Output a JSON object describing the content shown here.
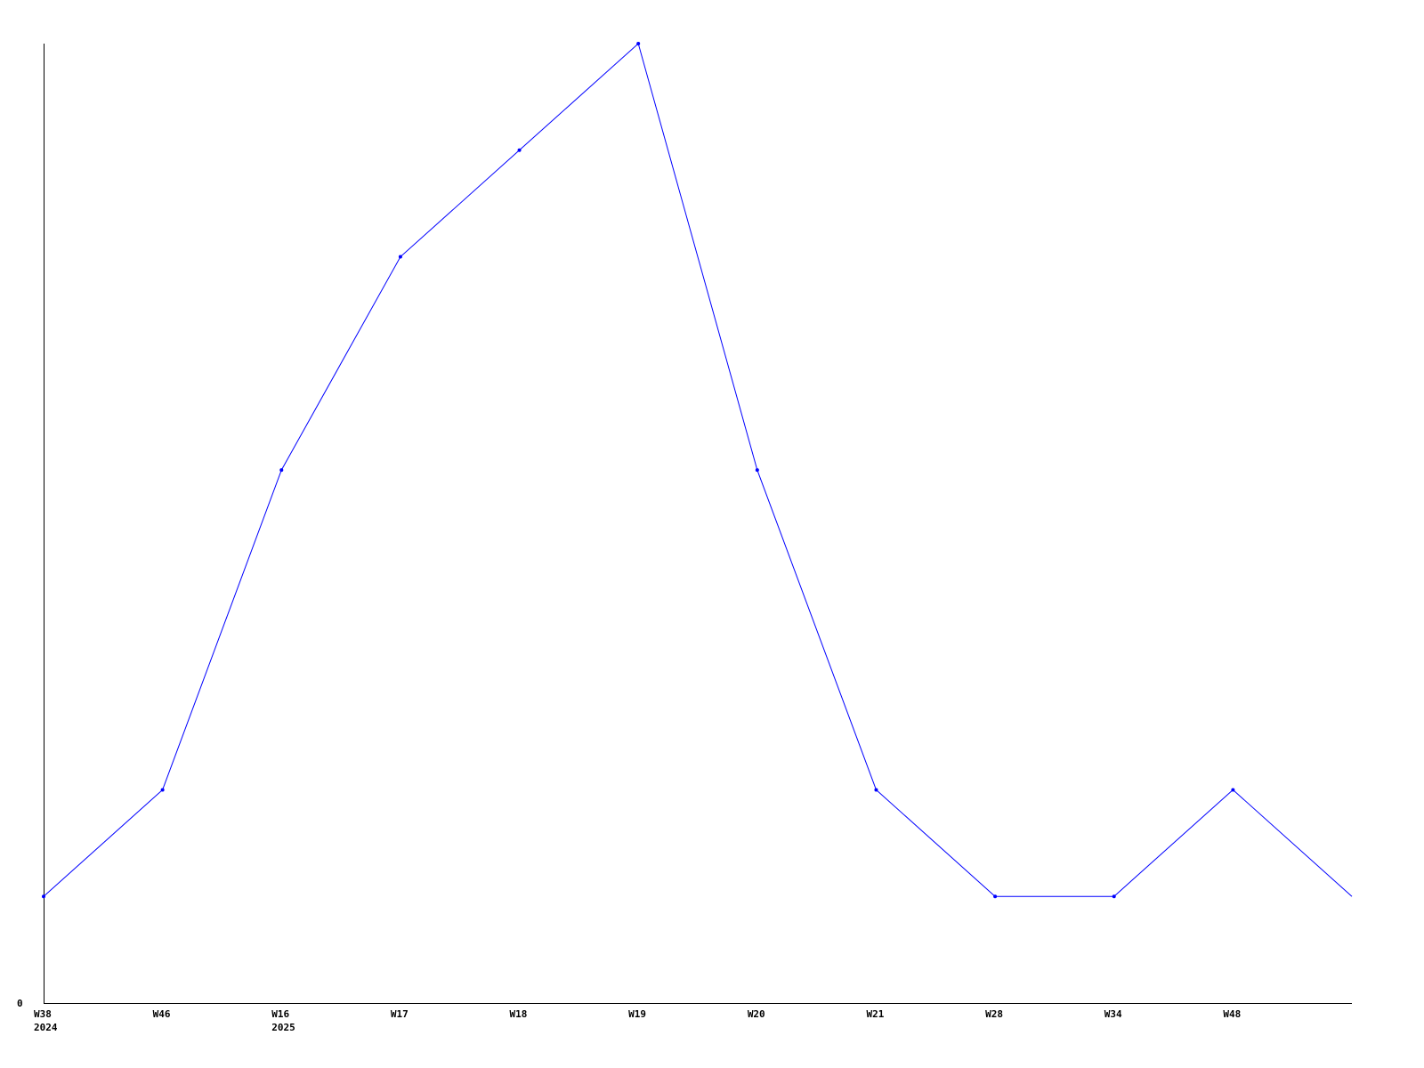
{
  "chart_data": {
    "type": "line",
    "title": "",
    "xlabel": "",
    "ylabel": "",
    "categories": [
      [
        "W38",
        "2024"
      ],
      [
        "W46",
        ""
      ],
      [
        "W16",
        "2025"
      ],
      [
        "W17",
        ""
      ],
      [
        "W18",
        ""
      ],
      [
        "W19",
        ""
      ],
      [
        "W20",
        ""
      ],
      [
        "W21",
        ""
      ],
      [
        "W28",
        ""
      ],
      [
        "W34",
        ""
      ],
      [
        "W48",
        ""
      ],
      [
        "",
        ""
      ]
    ],
    "values": [
      1,
      2,
      5,
      7,
      8,
      9,
      5,
      2,
      1,
      1,
      2,
      1
    ],
    "ylim": [
      0,
      9
    ],
    "y_tick_labels": [
      "0"
    ],
    "grid": false,
    "colors": {
      "line": "#0000ff",
      "axis": "#000000"
    }
  }
}
